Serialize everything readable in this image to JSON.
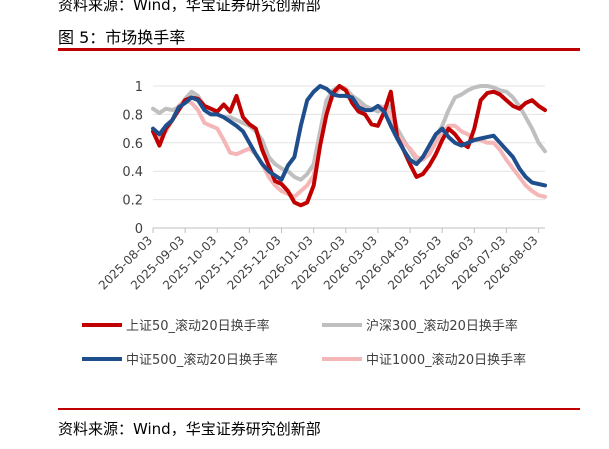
{
  "header": {
    "top_source": "资料来源：Wind，华宝证券研究创新部",
    "figure_title": "图 5：市场换手率"
  },
  "footer": {
    "source": "资料来源：Wind，华宝证券研究创新部"
  },
  "colors": {
    "rule": "#c00000"
  },
  "chart_data": {
    "type": "line",
    "title": "",
    "xlabel": "",
    "ylabel": "",
    "ylim": [
      0,
      1
    ],
    "yticks": [
      0,
      0.2,
      0.4,
      0.6,
      0.8,
      1
    ],
    "ytick_labels": [
      "0",
      "0.2",
      "0.4",
      "0.6",
      "0.8",
      "1"
    ],
    "xticks": [
      "2025-08-03",
      "2025-09-03",
      "2025-10-03",
      "2025-11-03",
      "2025-12-03",
      "2026-01-03",
      "2026-02-03",
      "2026-03-03",
      "2026-04-03",
      "2026-05-03",
      "2026-06-03",
      "2026-07-03",
      "2026-08-03"
    ],
    "x_range": [
      0,
      12.2
    ],
    "grid": "horizontal",
    "legend": "bottom",
    "series": [
      {
        "name": "上证50_滚动20日换手率",
        "color": "#c00000",
        "x": [
          0,
          0.2,
          0.4,
          0.6,
          0.8,
          1.0,
          1.2,
          1.4,
          1.6,
          1.8,
          2.0,
          2.2,
          2.4,
          2.6,
          2.8,
          3.0,
          3.2,
          3.4,
          3.6,
          3.8,
          4.0,
          4.2,
          4.4,
          4.6,
          4.8,
          5.0,
          5.2,
          5.4,
          5.6,
          5.8,
          6.0,
          6.2,
          6.4,
          6.6,
          6.8,
          7.0,
          7.2,
          7.4,
          7.6,
          7.8,
          8.0,
          8.2,
          8.4,
          8.6,
          8.8,
          9.0,
          9.2,
          9.4,
          9.6,
          9.8,
          10.0,
          10.2,
          10.4,
          10.6,
          10.8,
          11.0,
          11.2,
          11.4,
          11.6,
          11.8,
          12.0,
          12.2
        ],
        "values": [
          0.68,
          0.58,
          0.7,
          0.76,
          0.83,
          0.9,
          0.92,
          0.91,
          0.86,
          0.84,
          0.82,
          0.87,
          0.82,
          0.93,
          0.78,
          0.73,
          0.7,
          0.55,
          0.44,
          0.33,
          0.31,
          0.26,
          0.18,
          0.16,
          0.18,
          0.3,
          0.58,
          0.8,
          0.95,
          1.0,
          0.97,
          0.88,
          0.82,
          0.8,
          0.73,
          0.72,
          0.82,
          0.96,
          0.64,
          0.55,
          0.45,
          0.36,
          0.38,
          0.44,
          0.52,
          0.62,
          0.7,
          0.66,
          0.6,
          0.57,
          0.7,
          0.9,
          0.95,
          0.96,
          0.94,
          0.9,
          0.86,
          0.84,
          0.88,
          0.9,
          0.86,
          0.83
        ]
      },
      {
        "name": "沪深300_滚动20日换手率",
        "color": "#bfbfbf",
        "x": [
          0,
          0.2,
          0.4,
          0.6,
          0.8,
          1.0,
          1.2,
          1.4,
          1.6,
          1.8,
          2.0,
          2.2,
          2.4,
          2.6,
          2.8,
          3.0,
          3.2,
          3.4,
          3.6,
          3.8,
          4.0,
          4.2,
          4.4,
          4.6,
          4.8,
          5.0,
          5.2,
          5.4,
          5.6,
          5.8,
          6.0,
          6.2,
          6.4,
          6.6,
          6.8,
          7.0,
          7.2,
          7.4,
          7.6,
          7.8,
          8.0,
          8.2,
          8.4,
          8.6,
          8.8,
          9.0,
          9.2,
          9.4,
          9.6,
          9.8,
          10.0,
          10.2,
          10.4,
          10.6,
          10.8,
          11.0,
          11.2,
          11.4,
          11.6,
          11.8,
          12.0,
          12.2
        ],
        "values": [
          0.84,
          0.81,
          0.84,
          0.83,
          0.85,
          0.91,
          0.96,
          0.93,
          0.86,
          0.84,
          0.8,
          0.78,
          0.78,
          0.76,
          0.74,
          0.72,
          0.68,
          0.62,
          0.5,
          0.45,
          0.42,
          0.4,
          0.36,
          0.34,
          0.38,
          0.45,
          0.68,
          0.9,
          0.97,
          1.0,
          0.98,
          0.93,
          0.9,
          0.86,
          0.84,
          0.82,
          0.84,
          0.86,
          0.7,
          0.62,
          0.55,
          0.48,
          0.5,
          0.56,
          0.64,
          0.72,
          0.83,
          0.92,
          0.94,
          0.97,
          0.99,
          1.0,
          1.0,
          0.99,
          0.97,
          0.96,
          0.92,
          0.86,
          0.78,
          0.7,
          0.6,
          0.54
        ]
      },
      {
        "name": "中证500_滚动20日换手率",
        "color": "#1f4e8c",
        "x": [
          0,
          0.2,
          0.4,
          0.6,
          0.8,
          1.0,
          1.2,
          1.4,
          1.6,
          1.8,
          2.0,
          2.2,
          2.4,
          2.6,
          2.8,
          3.0,
          3.2,
          3.4,
          3.6,
          3.8,
          4.0,
          4.2,
          4.4,
          4.6,
          4.8,
          5.0,
          5.2,
          5.4,
          5.6,
          5.8,
          6.0,
          6.2,
          6.4,
          6.6,
          6.8,
          7.0,
          7.2,
          7.4,
          7.6,
          7.8,
          8.0,
          8.2,
          8.4,
          8.6,
          8.8,
          9.0,
          9.2,
          9.4,
          9.6,
          9.8,
          10.0,
          10.2,
          10.4,
          10.6,
          10.8,
          11.0,
          11.2,
          11.4,
          11.6,
          11.8,
          12.0,
          12.2
        ],
        "values": [
          0.7,
          0.66,
          0.72,
          0.76,
          0.85,
          0.88,
          0.92,
          0.9,
          0.83,
          0.8,
          0.8,
          0.78,
          0.75,
          0.72,
          0.68,
          0.6,
          0.52,
          0.45,
          0.4,
          0.37,
          0.34,
          0.44,
          0.5,
          0.72,
          0.9,
          0.96,
          1.0,
          0.98,
          0.94,
          0.93,
          0.93,
          0.92,
          0.85,
          0.83,
          0.83,
          0.86,
          0.82,
          0.72,
          0.63,
          0.55,
          0.48,
          0.45,
          0.5,
          0.58,
          0.66,
          0.7,
          0.64,
          0.6,
          0.58,
          0.6,
          0.62,
          0.63,
          0.64,
          0.65,
          0.6,
          0.55,
          0.5,
          0.42,
          0.36,
          0.32,
          0.31,
          0.3
        ]
      },
      {
        "name": "中证1000_滚动20日换手率",
        "color": "#f4b6b6",
        "x": [
          0,
          0.2,
          0.4,
          0.6,
          0.8,
          1.0,
          1.2,
          1.4,
          1.6,
          1.8,
          2.0,
          2.2,
          2.4,
          2.6,
          2.8,
          3.0,
          3.2,
          3.4,
          3.6,
          3.8,
          4.0,
          4.2,
          4.4,
          4.6,
          4.8,
          5.0,
          5.2,
          5.4,
          5.6,
          5.8,
          6.0,
          6.2,
          6.4,
          6.6,
          6.8,
          7.0,
          7.2,
          7.4,
          7.6,
          7.8,
          8.0,
          8.2,
          8.4,
          8.6,
          8.8,
          9.0,
          9.2,
          9.4,
          9.6,
          9.8,
          10.0,
          10.2,
          10.4,
          10.6,
          10.8,
          11.0,
          11.2,
          11.4,
          11.6,
          11.8,
          12.0,
          12.2
        ],
        "values": [
          0.68,
          0.64,
          0.68,
          0.76,
          0.86,
          0.9,
          0.88,
          0.83,
          0.74,
          0.72,
          0.7,
          0.62,
          0.53,
          0.52,
          0.54,
          0.56,
          0.52,
          0.45,
          0.36,
          0.3,
          0.26,
          0.24,
          0.22,
          0.26,
          0.3,
          0.37,
          0.6,
          0.82,
          0.93,
          0.98,
          0.98,
          0.9,
          0.87,
          0.83,
          0.83,
          0.86,
          0.85,
          0.8,
          0.66,
          0.6,
          0.56,
          0.5,
          0.48,
          0.52,
          0.6,
          0.68,
          0.72,
          0.72,
          0.68,
          0.66,
          0.62,
          0.62,
          0.6,
          0.6,
          0.55,
          0.48,
          0.42,
          0.36,
          0.3,
          0.26,
          0.23,
          0.22
        ]
      }
    ]
  }
}
